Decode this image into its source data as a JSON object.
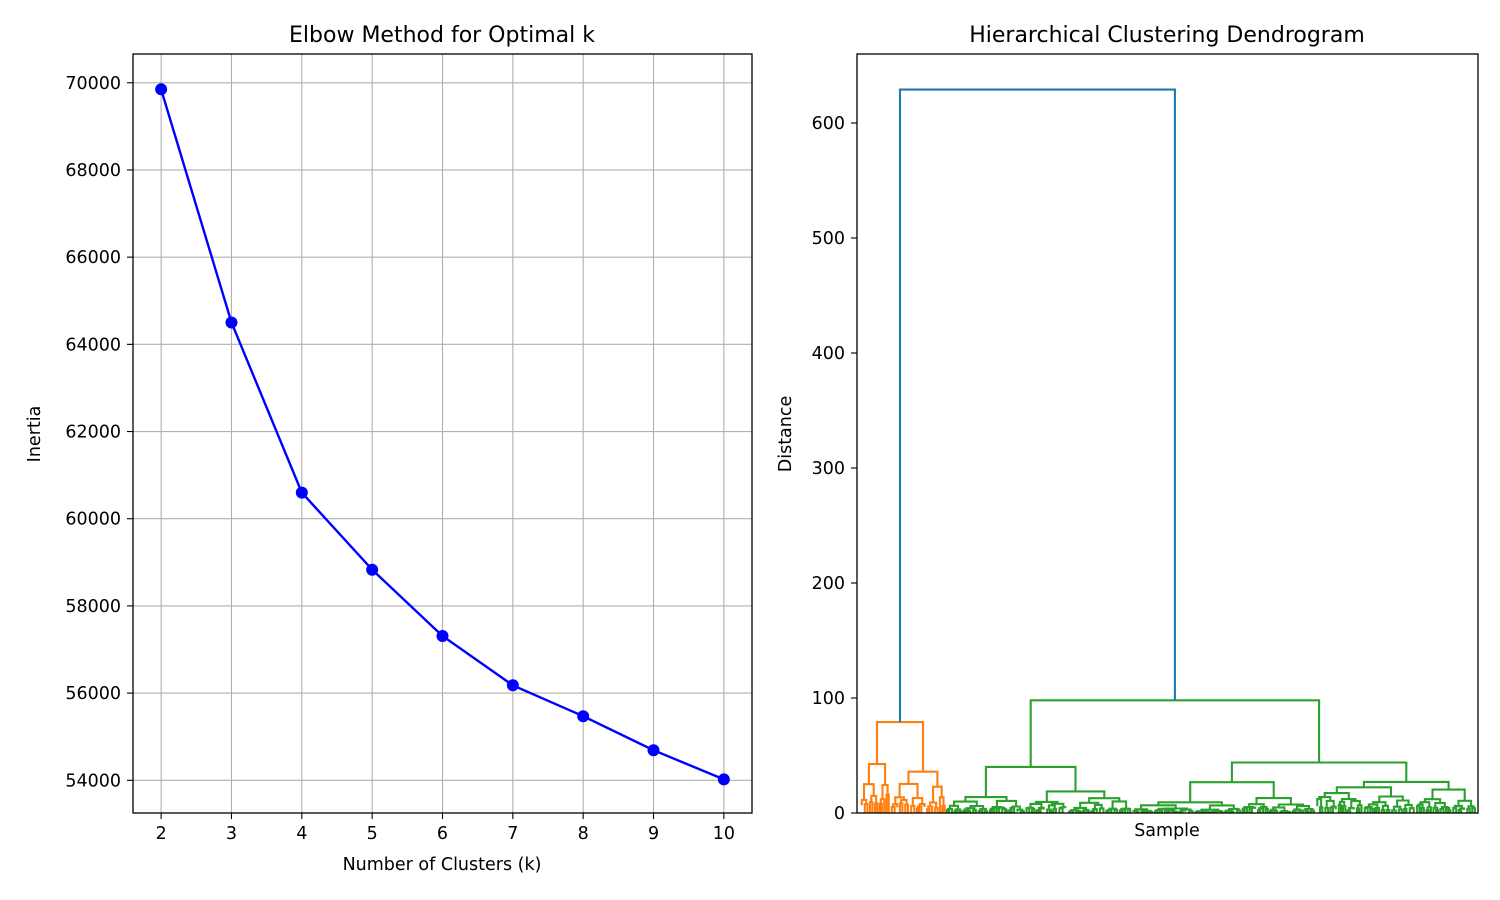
{
  "chart_data": [
    {
      "type": "line",
      "title": "Elbow Method for Optimal k",
      "xlabel": "Number of Clusters (k)",
      "ylabel": "Inertia",
      "x": [
        2,
        3,
        4,
        5,
        6,
        7,
        8,
        9,
        10
      ],
      "series": [
        {
          "values": [
            69850,
            64500,
            60600,
            58830,
            57310,
            56180,
            55470,
            54690,
            54020
          ],
          "color": "#0000ff"
        }
      ],
      "xlim": [
        1.6,
        10.4
      ],
      "ylim": [
        53250,
        70660
      ],
      "xticks": [
        2,
        3,
        4,
        5,
        6,
        7,
        8,
        9,
        10
      ],
      "yticks": [
        54000,
        56000,
        58000,
        60000,
        62000,
        64000,
        66000,
        68000,
        70000
      ],
      "grid": true
    },
    {
      "type": "dendrogram",
      "title": "Hierarchical Clustering Dendrogram",
      "xlabel": "Sample",
      "ylabel": "Distance",
      "ylim": [
        0,
        660
      ],
      "yticks": [
        0,
        100,
        200,
        300,
        400,
        500,
        600
      ],
      "grid": false,
      "colors": {
        "root": "#1f77b4",
        "cluster_1": "#ff7f0e",
        "cluster_2": "#2ca02c"
      },
      "root_merge": {
        "height": 629,
        "children": [
          "cluster_1",
          "cluster_2"
        ]
      },
      "cluster_1": {
        "height": 79
      },
      "cluster_2": {
        "height": 98
      }
    }
  ]
}
